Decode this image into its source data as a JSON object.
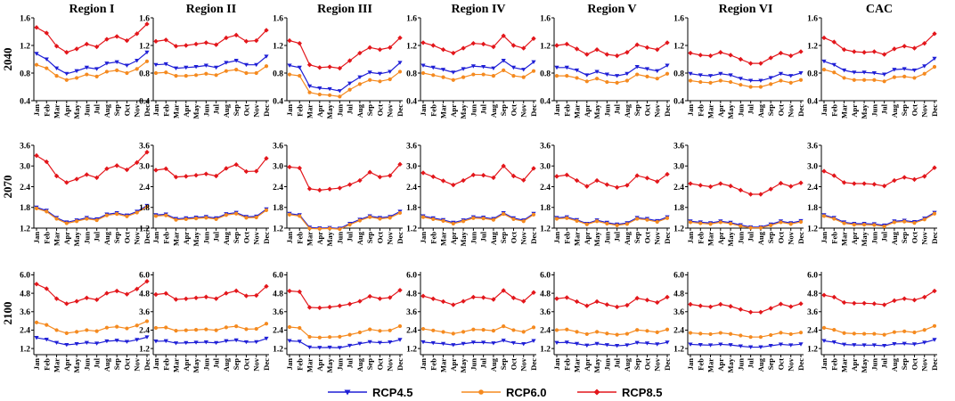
{
  "chart_data": {
    "type": "line",
    "regions": [
      "Region I",
      "Region II",
      "Region III",
      "Region IV",
      "Region V",
      "Region VI",
      "CAC"
    ],
    "periods": [
      "2040",
      "2070",
      "2100"
    ],
    "months": [
      "Jan",
      "Feb",
      "Mar",
      "Apr",
      "May",
      "Jun",
      "Jul",
      "Aug",
      "Sep",
      "Oct",
      "Nov",
      "Dec"
    ],
    "y_axes": [
      {
        "period": "2040",
        "ylim": [
          0.4,
          1.6
        ],
        "ticks": [
          "0.4",
          "0.8",
          "1.2",
          "1.6"
        ]
      },
      {
        "period": "2070",
        "ylim": [
          1.2,
          3.6
        ],
        "ticks": [
          "1.2",
          "1.8",
          "2.4",
          "3.0",
          "3.6"
        ]
      },
      {
        "period": "2100",
        "ylim": [
          0.8,
          6.2
        ],
        "tick_values": [
          1.2,
          2.4,
          3.6,
          4.8,
          6.0
        ],
        "ticks": [
          "1.2",
          "2.4",
          "3.6",
          "4.8",
          "6.0"
        ]
      }
    ],
    "legend": [
      {
        "name": "RCP4.5",
        "color": "#1f1fd6",
        "marker": "triangle-down"
      },
      {
        "name": "RCP6.0",
        "color": "#f58a1f",
        "marker": "circle"
      },
      {
        "name": "RCP8.5",
        "color": "#e3161b",
        "marker": "diamond"
      }
    ],
    "panels": [
      [
        {
          "RCP4.5": [
            1.08,
            1.0,
            0.87,
            0.79,
            0.83,
            0.88,
            0.86,
            0.94,
            0.96,
            0.91,
            0.98,
            1.1
          ],
          "RCP6.0": [
            0.92,
            0.87,
            0.76,
            0.7,
            0.73,
            0.78,
            0.75,
            0.82,
            0.84,
            0.8,
            0.86,
            0.97
          ],
          "RCP8.5": [
            1.46,
            1.38,
            1.19,
            1.1,
            1.15,
            1.22,
            1.18,
            1.29,
            1.33,
            1.27,
            1.37,
            1.51
          ]
        },
        {
          "RCP4.5": [
            0.92,
            0.93,
            0.87,
            0.88,
            0.89,
            0.91,
            0.88,
            0.95,
            0.98,
            0.92,
            0.92,
            1.04
          ],
          "RCP6.0": [
            0.8,
            0.81,
            0.76,
            0.76,
            0.77,
            0.79,
            0.77,
            0.83,
            0.85,
            0.8,
            0.8,
            0.9
          ],
          "RCP8.5": [
            1.26,
            1.28,
            1.19,
            1.2,
            1.22,
            1.24,
            1.21,
            1.31,
            1.35,
            1.26,
            1.27,
            1.42
          ]
        },
        {
          "RCP4.5": [
            0.91,
            0.88,
            0.61,
            0.58,
            0.57,
            0.54,
            0.65,
            0.74,
            0.81,
            0.79,
            0.82,
            0.95
          ],
          "RCP6.0": [
            0.78,
            0.76,
            0.52,
            0.49,
            0.48,
            0.46,
            0.56,
            0.64,
            0.7,
            0.68,
            0.71,
            0.82
          ],
          "RCP8.5": [
            1.27,
            1.23,
            0.92,
            0.88,
            0.89,
            0.87,
            0.98,
            1.09,
            1.17,
            1.14,
            1.17,
            1.31
          ]
        },
        {
          "RCP4.5": [
            0.91,
            0.88,
            0.85,
            0.81,
            0.86,
            0.9,
            0.89,
            0.87,
            0.98,
            0.88,
            0.85,
            0.96
          ],
          "RCP6.0": [
            0.8,
            0.77,
            0.74,
            0.7,
            0.74,
            0.78,
            0.78,
            0.76,
            0.84,
            0.76,
            0.74,
            0.83
          ],
          "RCP8.5": [
            1.24,
            1.2,
            1.14,
            1.09,
            1.16,
            1.23,
            1.22,
            1.18,
            1.34,
            1.2,
            1.16,
            1.3
          ]
        },
        {
          "RCP4.5": [
            0.88,
            0.88,
            0.84,
            0.77,
            0.82,
            0.78,
            0.76,
            0.79,
            0.89,
            0.86,
            0.83,
            0.91
          ],
          "RCP6.0": [
            0.76,
            0.76,
            0.73,
            0.68,
            0.72,
            0.67,
            0.66,
            0.69,
            0.78,
            0.75,
            0.72,
            0.79
          ],
          "RCP8.5": [
            1.2,
            1.22,
            1.15,
            1.07,
            1.14,
            1.07,
            1.05,
            1.1,
            1.21,
            1.17,
            1.14,
            1.24
          ]
        },
        {
          "RCP4.5": [
            0.79,
            0.77,
            0.76,
            0.79,
            0.77,
            0.72,
            0.69,
            0.69,
            0.73,
            0.79,
            0.76,
            0.8
          ],
          "RCP6.0": [
            0.69,
            0.67,
            0.66,
            0.69,
            0.67,
            0.63,
            0.6,
            0.6,
            0.64,
            0.69,
            0.66,
            0.7
          ],
          "RCP8.5": [
            1.09,
            1.06,
            1.05,
            1.1,
            1.06,
            1.0,
            0.94,
            0.94,
            1.02,
            1.09,
            1.05,
            1.11
          ]
        },
        {
          "RCP4.5": [
            0.97,
            0.92,
            0.84,
            0.81,
            0.81,
            0.8,
            0.78,
            0.85,
            0.86,
            0.84,
            0.9,
            1.01
          ],
          "RCP6.0": [
            0.85,
            0.81,
            0.73,
            0.7,
            0.7,
            0.7,
            0.68,
            0.74,
            0.75,
            0.73,
            0.79,
            0.89
          ],
          "RCP8.5": [
            1.31,
            1.25,
            1.14,
            1.11,
            1.1,
            1.11,
            1.07,
            1.15,
            1.19,
            1.16,
            1.23,
            1.37
          ]
        }
      ],
      [
        {
          "RCP4.5": [
            1.8,
            1.71,
            1.5,
            1.37,
            1.43,
            1.5,
            1.46,
            1.6,
            1.64,
            1.57,
            1.68,
            1.85
          ],
          "RCP6.0": [
            1.77,
            1.68,
            1.47,
            1.34,
            1.4,
            1.47,
            1.43,
            1.57,
            1.61,
            1.54,
            1.65,
            1.82
          ],
          "RCP8.5": [
            3.3,
            3.12,
            2.71,
            2.52,
            2.62,
            2.75,
            2.66,
            2.92,
            3.01,
            2.89,
            3.1,
            3.4
          ]
        },
        {
          "RCP4.5": [
            1.58,
            1.6,
            1.47,
            1.49,
            1.51,
            1.53,
            1.49,
            1.61,
            1.65,
            1.53,
            1.54,
            1.75
          ],
          "RCP6.0": [
            1.55,
            1.57,
            1.44,
            1.46,
            1.48,
            1.5,
            1.46,
            1.58,
            1.62,
            1.5,
            1.51,
            1.72
          ],
          "RCP8.5": [
            2.88,
            2.92,
            2.68,
            2.7,
            2.73,
            2.77,
            2.71,
            2.93,
            3.04,
            2.84,
            2.85,
            3.22
          ]
        },
        {
          "RCP4.5": [
            1.62,
            1.58,
            1.22,
            1.2,
            1.21,
            1.19,
            1.33,
            1.45,
            1.55,
            1.5,
            1.53,
            1.68
          ],
          "RCP6.0": [
            1.59,
            1.55,
            1.19,
            1.18,
            1.19,
            1.17,
            1.3,
            1.42,
            1.52,
            1.47,
            1.5,
            1.64
          ],
          "RCP8.5": [
            2.97,
            2.94,
            2.34,
            2.3,
            2.33,
            2.36,
            2.46,
            2.58,
            2.82,
            2.68,
            2.72,
            3.05
          ]
        },
        {
          "RCP4.5": [
            1.55,
            1.49,
            1.44,
            1.36,
            1.43,
            1.52,
            1.51,
            1.47,
            1.64,
            1.49,
            1.43,
            1.62
          ],
          "RCP6.0": [
            1.52,
            1.46,
            1.41,
            1.33,
            1.4,
            1.49,
            1.48,
            1.44,
            1.61,
            1.46,
            1.4,
            1.59
          ],
          "RCP8.5": [
            2.8,
            2.69,
            2.57,
            2.45,
            2.58,
            2.74,
            2.73,
            2.66,
            3.0,
            2.71,
            2.59,
            2.93
          ]
        },
        {
          "RCP4.5": [
            1.5,
            1.52,
            1.44,
            1.33,
            1.43,
            1.36,
            1.31,
            1.35,
            1.5,
            1.47,
            1.41,
            1.52
          ],
          "RCP6.0": [
            1.47,
            1.49,
            1.41,
            1.31,
            1.4,
            1.33,
            1.28,
            1.32,
            1.47,
            1.44,
            1.38,
            1.49
          ],
          "RCP8.5": [
            2.7,
            2.74,
            2.58,
            2.41,
            2.58,
            2.46,
            2.38,
            2.44,
            2.72,
            2.65,
            2.55,
            2.76
          ]
        },
        {
          "RCP4.5": [
            1.4,
            1.37,
            1.35,
            1.4,
            1.36,
            1.29,
            1.23,
            1.23,
            1.31,
            1.4,
            1.35,
            1.41
          ],
          "RCP6.0": [
            1.37,
            1.34,
            1.32,
            1.37,
            1.33,
            1.26,
            1.21,
            1.21,
            1.28,
            1.37,
            1.32,
            1.38
          ],
          "RCP8.5": [
            2.49,
            2.44,
            2.4,
            2.49,
            2.42,
            2.3,
            2.18,
            2.18,
            2.33,
            2.5,
            2.41,
            2.51
          ]
        },
        {
          "RCP4.5": [
            1.58,
            1.5,
            1.37,
            1.33,
            1.33,
            1.32,
            1.28,
            1.4,
            1.42,
            1.38,
            1.48,
            1.65
          ],
          "RCP6.0": [
            1.55,
            1.47,
            1.34,
            1.3,
            1.3,
            1.29,
            1.25,
            1.37,
            1.39,
            1.35,
            1.45,
            1.62
          ],
          "RCP8.5": [
            2.85,
            2.72,
            2.52,
            2.49,
            2.49,
            2.47,
            2.42,
            2.58,
            2.67,
            2.61,
            2.7,
            2.95
          ]
        }
      ],
      [
        {
          "RCP4.5": [
            1.9,
            1.79,
            1.58,
            1.44,
            1.5,
            1.58,
            1.53,
            1.68,
            1.72,
            1.64,
            1.77,
            1.94
          ],
          "RCP6.0": [
            2.9,
            2.74,
            2.4,
            2.2,
            2.29,
            2.4,
            2.33,
            2.56,
            2.62,
            2.51,
            2.7,
            2.98
          ],
          "RCP8.5": [
            5.4,
            5.1,
            4.45,
            4.12,
            4.28,
            4.5,
            4.38,
            4.8,
            4.95,
            4.74,
            5.08,
            5.58
          ]
        },
        {
          "RCP4.5": [
            1.67,
            1.69,
            1.55,
            1.57,
            1.59,
            1.61,
            1.57,
            1.69,
            1.74,
            1.62,
            1.63,
            1.85
          ],
          "RCP6.0": [
            2.54,
            2.57,
            2.36,
            2.39,
            2.42,
            2.45,
            2.39,
            2.58,
            2.65,
            2.46,
            2.48,
            2.82
          ],
          "RCP8.5": [
            4.72,
            4.79,
            4.4,
            4.44,
            4.5,
            4.56,
            4.45,
            4.8,
            4.96,
            4.63,
            4.66,
            5.25
          ]
        },
        {
          "RCP4.5": [
            1.7,
            1.66,
            1.28,
            1.26,
            1.27,
            1.25,
            1.39,
            1.52,
            1.63,
            1.58,
            1.61,
            1.77
          ],
          "RCP6.0": [
            2.6,
            2.54,
            1.96,
            1.92,
            1.95,
            1.97,
            2.1,
            2.25,
            2.45,
            2.35,
            2.38,
            2.66
          ],
          "RCP8.5": [
            4.95,
            4.9,
            3.88,
            3.85,
            3.9,
            3.98,
            4.1,
            4.28,
            4.6,
            4.45,
            4.52,
            5.0
          ]
        },
        {
          "RCP4.5": [
            1.62,
            1.56,
            1.51,
            1.43,
            1.51,
            1.6,
            1.59,
            1.55,
            1.72,
            1.56,
            1.5,
            1.7
          ],
          "RCP6.0": [
            2.48,
            2.38,
            2.28,
            2.17,
            2.29,
            2.44,
            2.42,
            2.36,
            2.65,
            2.4,
            2.29,
            2.58
          ],
          "RCP8.5": [
            4.62,
            4.44,
            4.26,
            4.05,
            4.28,
            4.55,
            4.52,
            4.4,
            4.98,
            4.5,
            4.28,
            4.85
          ]
        },
        {
          "RCP4.5": [
            1.58,
            1.6,
            1.51,
            1.4,
            1.51,
            1.43,
            1.38,
            1.42,
            1.58,
            1.54,
            1.48,
            1.6
          ],
          "RCP6.0": [
            2.4,
            2.44,
            2.29,
            2.14,
            2.29,
            2.18,
            2.1,
            2.16,
            2.41,
            2.35,
            2.26,
            2.44
          ],
          "RCP8.5": [
            4.45,
            4.52,
            4.26,
            3.98,
            4.26,
            4.06,
            3.91,
            4.02,
            4.48,
            4.36,
            4.2,
            4.55
          ]
        },
        {
          "RCP4.5": [
            1.47,
            1.44,
            1.42,
            1.47,
            1.43,
            1.35,
            1.29,
            1.29,
            1.38,
            1.47,
            1.42,
            1.48
          ],
          "RCP6.0": [
            2.22,
            2.17,
            2.14,
            2.22,
            2.15,
            2.05,
            1.95,
            1.95,
            2.08,
            2.23,
            2.14,
            2.24
          ],
          "RCP8.5": [
            4.08,
            3.98,
            3.92,
            4.08,
            3.95,
            3.75,
            3.57,
            3.57,
            3.82,
            4.1,
            3.93,
            4.12
          ]
        },
        {
          "RCP4.5": [
            1.7,
            1.61,
            1.46,
            1.43,
            1.42,
            1.42,
            1.38,
            1.5,
            1.52,
            1.48,
            1.59,
            1.77
          ],
          "RCP6.0": [
            2.55,
            2.42,
            2.21,
            2.17,
            2.16,
            2.16,
            2.1,
            2.27,
            2.32,
            2.25,
            2.41,
            2.67
          ],
          "RCP8.5": [
            4.68,
            4.55,
            4.2,
            4.15,
            4.15,
            4.12,
            4.05,
            4.32,
            4.45,
            4.36,
            4.55,
            4.95
          ]
        }
      ]
    ]
  }
}
